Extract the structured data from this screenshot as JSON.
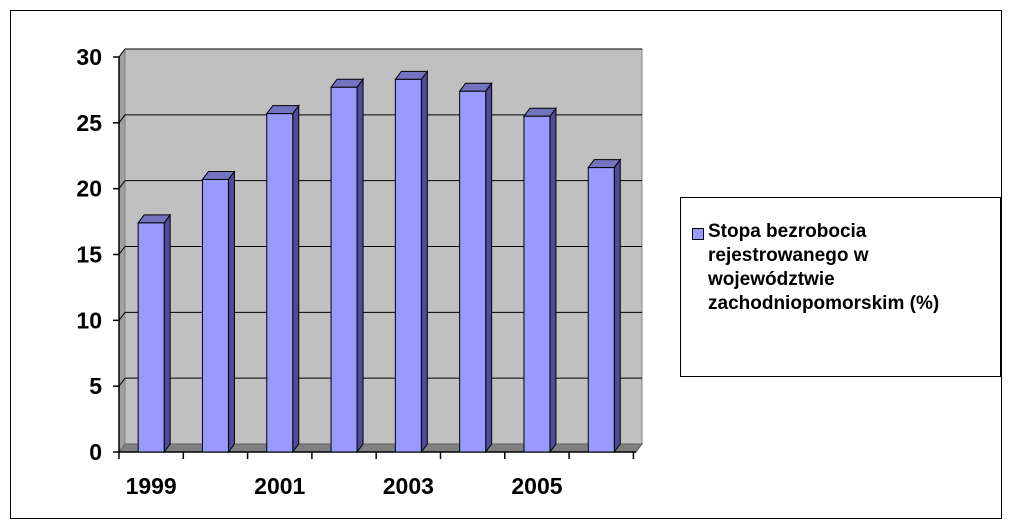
{
  "chart_data": {
    "type": "bar",
    "style": "3d-columns",
    "categories": [
      "1999",
      "2000",
      "2001",
      "2002",
      "2003",
      "2004",
      "2005",
      "2006"
    ],
    "x_tick_labels": [
      "1999",
      "2001",
      "2003",
      "2005"
    ],
    "series": [
      {
        "name": "Stopa bezrobocia rejestrowanego w województwie zachodniopomorskim (%)",
        "values": [
          17.4,
          20.7,
          25.7,
          27.7,
          28.3,
          27.4,
          25.5,
          21.6
        ],
        "color": "#9999ff"
      }
    ],
    "y_ticks": [
      "0",
      "5",
      "10",
      "15",
      "20",
      "25",
      "30"
    ],
    "ylim": [
      0,
      30
    ],
    "grid": true,
    "plot_background": "#c0c0c0",
    "legend_placement": "right"
  },
  "legend": {
    "label": "Stopa bezrobocia rejestrowanego w województwie zachodniopomorskim (%)"
  }
}
